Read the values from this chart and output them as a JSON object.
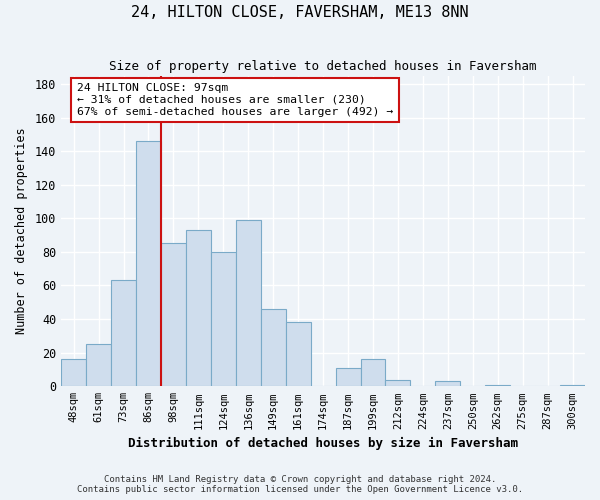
{
  "title": "24, HILTON CLOSE, FAVERSHAM, ME13 8NN",
  "subtitle": "Size of property relative to detached houses in Faversham",
  "xlabel": "Distribution of detached houses by size in Faversham",
  "ylabel": "Number of detached properties",
  "bar_color": "#cfdded",
  "bar_edge_color": "#7aaac8",
  "bg_color": "#eef3f8",
  "plot_bg_color": "#eef3f8",
  "grid_color": "#ffffff",
  "annotation_box_color": "#ffffff",
  "annotation_box_edge": "#cc1111",
  "vline_color": "#cc1111",
  "categories": [
    "48sqm",
    "61sqm",
    "73sqm",
    "86sqm",
    "98sqm",
    "111sqm",
    "124sqm",
    "136sqm",
    "149sqm",
    "161sqm",
    "174sqm",
    "187sqm",
    "199sqm",
    "212sqm",
    "224sqm",
    "237sqm",
    "250sqm",
    "262sqm",
    "275sqm",
    "287sqm",
    "300sqm"
  ],
  "values": [
    16,
    25,
    63,
    146,
    85,
    93,
    80,
    99,
    46,
    38,
    0,
    11,
    16,
    4,
    0,
    3,
    0,
    1,
    0,
    0,
    1
  ],
  "vline_index": 3.5,
  "annotation_title": "24 HILTON CLOSE: 97sqm",
  "annotation_line1": "← 31% of detached houses are smaller (230)",
  "annotation_line2": "67% of semi-detached houses are larger (492) →",
  "ylim": [
    0,
    185
  ],
  "yticks": [
    0,
    20,
    40,
    60,
    80,
    100,
    120,
    140,
    160,
    180
  ],
  "footnote1": "Contains HM Land Registry data © Crown copyright and database right 2024.",
  "footnote2": "Contains public sector information licensed under the Open Government Licence v3.0."
}
